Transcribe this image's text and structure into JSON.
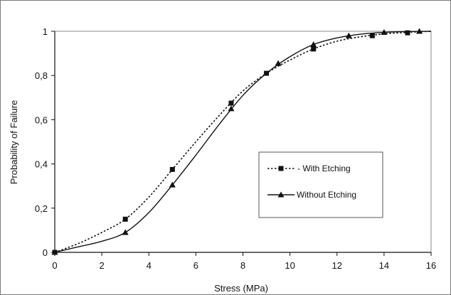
{
  "chart_data": {
    "type": "line",
    "title": "",
    "xlabel": "Stress (MPa)",
    "ylabel": "Probability of Failure",
    "xlim": [
      0,
      16
    ],
    "ylim": [
      0,
      1
    ],
    "xticks": [
      0,
      2,
      4,
      6,
      8,
      10,
      12,
      14,
      16
    ],
    "yticks": [
      0,
      0.2,
      0.4,
      0.6,
      0.8,
      1
    ],
    "xtick_labels": [
      "0",
      "2",
      "4",
      "6",
      "8",
      "10",
      "12",
      "14",
      "16"
    ],
    "ytick_labels": [
      "0",
      "0,2",
      "0,4",
      "0,6",
      "0,8",
      "1"
    ],
    "grid": false,
    "legend_position": "center-right",
    "series": [
      {
        "name": "- With Etching",
        "marker": "square",
        "line_style": "dotted",
        "color": "#111111",
        "points": [
          [
            0,
            0.0
          ],
          [
            3,
            0.15
          ],
          [
            5,
            0.375
          ],
          [
            7.5,
            0.675
          ],
          [
            9,
            0.81
          ],
          [
            11,
            0.92
          ],
          [
            13.5,
            0.98
          ],
          [
            15,
            0.993
          ]
        ],
        "curve": [
          [
            0,
            0.0
          ],
          [
            1,
            0.04
          ],
          [
            2,
            0.09
          ],
          [
            3,
            0.15
          ],
          [
            4,
            0.25
          ],
          [
            5,
            0.375
          ],
          [
            6,
            0.5
          ],
          [
            7,
            0.62
          ],
          [
            8,
            0.73
          ],
          [
            9,
            0.81
          ],
          [
            10,
            0.87
          ],
          [
            11,
            0.92
          ],
          [
            12,
            0.955
          ],
          [
            13,
            0.975
          ],
          [
            14,
            0.988
          ],
          [
            15,
            0.995
          ],
          [
            16,
            1.0
          ]
        ]
      },
      {
        "name": "Without Etching",
        "marker": "triangle",
        "line_style": "solid",
        "color": "#111111",
        "points": [
          [
            0,
            0.0
          ],
          [
            3,
            0.09
          ],
          [
            5,
            0.305
          ],
          [
            7.5,
            0.65
          ],
          [
            9.5,
            0.855
          ],
          [
            11,
            0.94
          ],
          [
            12.5,
            0.98
          ],
          [
            14,
            0.995
          ],
          [
            15.5,
            1.0
          ]
        ],
        "curve": [
          [
            0,
            0.0
          ],
          [
            1,
            0.025
          ],
          [
            2,
            0.05
          ],
          [
            3,
            0.09
          ],
          [
            4,
            0.18
          ],
          [
            5,
            0.305
          ],
          [
            6,
            0.44
          ],
          [
            7,
            0.58
          ],
          [
            8,
            0.71
          ],
          [
            9,
            0.81
          ],
          [
            10,
            0.885
          ],
          [
            11,
            0.94
          ],
          [
            12,
            0.97
          ],
          [
            13,
            0.987
          ],
          [
            14,
            0.995
          ],
          [
            15,
            0.999
          ],
          [
            16,
            1.0
          ]
        ]
      }
    ]
  }
}
